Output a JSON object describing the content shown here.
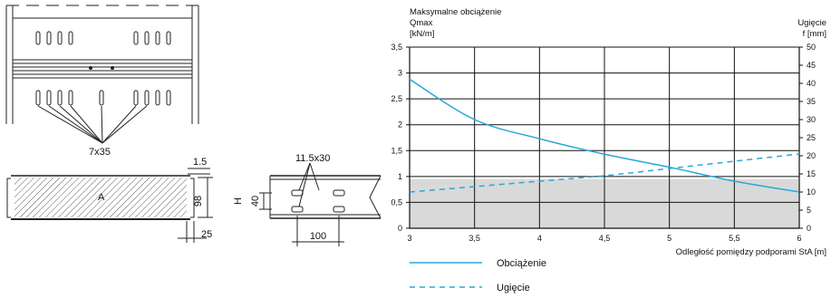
{
  "drawings": {
    "holes_label": "7x35",
    "wall_thickness": "1.5",
    "section_height": "98",
    "flange_width": "25",
    "section_marker": "A",
    "hole_size": "11.5x30",
    "side_marker": "H",
    "hole_spacing_vertical": "40",
    "hole_spacing_horizontal": "100"
  },
  "chart_data": {
    "type": "line",
    "title_line1": "Maksymalne obciążenie",
    "title_line2": "Qmax",
    "ylabel_left": "[kN/m]",
    "ylabel_right_line1": "Ugięcie",
    "ylabel_right_line2": "f [mm]",
    "xlabel": "Odległość pomiędzy podporami  StA [m]",
    "xlim": [
      3,
      6
    ],
    "ylim_left": [
      0,
      3.5
    ],
    "ylim_right": [
      0,
      50
    ],
    "x_ticks": [
      "3",
      "3,5",
      "4",
      "4,5",
      "5",
      "5,5",
      "6"
    ],
    "y_left_ticks": [
      "0",
      "0,5",
      "1",
      "1,5",
      "2",
      "2,5",
      "3",
      "3,5"
    ],
    "y_right_ticks": [
      "0",
      "5",
      "10",
      "15",
      "20",
      "25",
      "30",
      "35",
      "40",
      "45",
      "50"
    ],
    "shaded_limit": 0.95,
    "grid": true,
    "series": [
      {
        "name": "Obciążenie",
        "axis": "left",
        "style": "solid",
        "color": "#29a8d8",
        "x": [
          3,
          3.5,
          4,
          4.5,
          5,
          5.5,
          6
        ],
        "y": [
          2.88,
          2.1,
          1.73,
          1.43,
          1.18,
          0.91,
          0.7
        ]
      },
      {
        "name": "Ugięcie",
        "axis": "right",
        "style": "dashed",
        "color": "#29a8d8",
        "x": [
          3,
          3.5,
          4,
          4.5,
          5,
          5.5,
          6
        ],
        "y": [
          10.0,
          11.5,
          13.0,
          14.5,
          16.5,
          18.5,
          20.5
        ]
      }
    ]
  }
}
